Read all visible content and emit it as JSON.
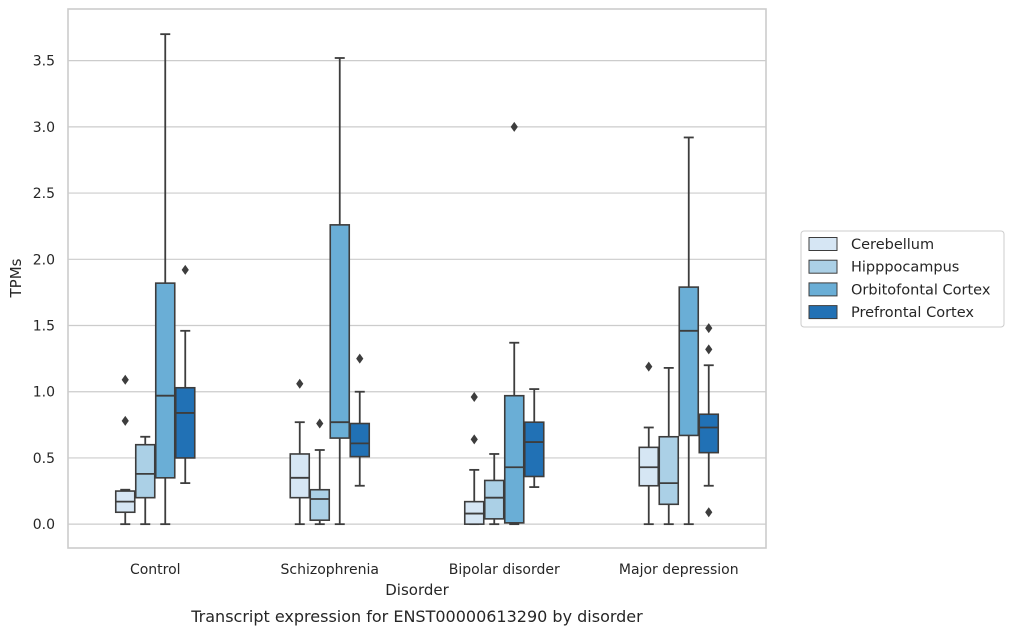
{
  "chart_data": {
    "type": "boxplot",
    "xlabel": "Disorder",
    "ylabel": "TPMs",
    "caption": "Transcript expression for ENST00000613290 by disorder",
    "ylim": [
      -0.18,
      3.89
    ],
    "yticks": [
      "0.0",
      "0.5",
      "1.0",
      "1.5",
      "2.0",
      "2.5",
      "3.0",
      "3.5"
    ],
    "grid": "horizontal",
    "legend_position": "right",
    "categories": [
      "Control",
      "Schizophrenia",
      "Bipolar disorder",
      "Major depression"
    ],
    "series": [
      {
        "name": "Cerebellum",
        "color": "#d6e6f4",
        "boxes": [
          {
            "whislo": 0.0,
            "q1": 0.09,
            "med": 0.17,
            "q3": 0.25,
            "whishi": 0.26,
            "fliers": [
              0.78,
              1.09
            ]
          },
          {
            "whislo": 0.0,
            "q1": 0.2,
            "med": 0.35,
            "q3": 0.53,
            "whishi": 0.77,
            "fliers": [
              1.06
            ]
          },
          {
            "whislo": 0.0,
            "q1": 0.0,
            "med": 0.08,
            "q3": 0.17,
            "whishi": 0.41,
            "fliers": [
              0.64,
              0.96
            ]
          },
          {
            "whislo": 0.0,
            "q1": 0.29,
            "med": 0.43,
            "q3": 0.58,
            "whishi": 0.73,
            "fliers": [
              1.19
            ]
          }
        ]
      },
      {
        "name": "Hipppocampus",
        "color": "#abd0e6",
        "boxes": [
          {
            "whislo": 0.0,
            "q1": 0.2,
            "med": 0.38,
            "q3": 0.6,
            "whishi": 0.66,
            "fliers": []
          },
          {
            "whislo": 0.0,
            "q1": 0.03,
            "med": 0.19,
            "q3": 0.26,
            "whishi": 0.56,
            "fliers": [
              0.76
            ]
          },
          {
            "whislo": 0.0,
            "q1": 0.04,
            "med": 0.2,
            "q3": 0.33,
            "whishi": 0.53,
            "fliers": []
          },
          {
            "whislo": 0.0,
            "q1": 0.15,
            "med": 0.31,
            "q3": 0.66,
            "whishi": 1.18,
            "fliers": []
          }
        ]
      },
      {
        "name": "Orbitofontal Cortex",
        "color": "#6aaed6",
        "boxes": [
          {
            "whislo": 0.0,
            "q1": 0.35,
            "med": 0.97,
            "q3": 1.82,
            "whishi": 3.7,
            "fliers": []
          },
          {
            "whislo": 0.0,
            "q1": 0.65,
            "med": 0.77,
            "q3": 2.26,
            "whishi": 3.52,
            "fliers": []
          },
          {
            "whislo": 0.0,
            "q1": 0.01,
            "med": 0.43,
            "q3": 0.97,
            "whishi": 1.37,
            "fliers": [
              3.0
            ]
          },
          {
            "whislo": 0.0,
            "q1": 0.67,
            "med": 1.46,
            "q3": 1.79,
            "whishi": 2.92,
            "fliers": []
          }
        ]
      },
      {
        "name": "Prefrontal Cortex",
        "color": "#2171b5",
        "boxes": [
          {
            "whislo": 0.31,
            "q1": 0.5,
            "med": 0.84,
            "q3": 1.03,
            "whishi": 1.46,
            "fliers": [
              1.92
            ]
          },
          {
            "whislo": 0.29,
            "q1": 0.51,
            "med": 0.61,
            "q3": 0.76,
            "whishi": 1.0,
            "fliers": [
              1.25
            ]
          },
          {
            "whislo": 0.28,
            "q1": 0.36,
            "med": 0.62,
            "q3": 0.77,
            "whishi": 1.02,
            "fliers": []
          },
          {
            "whislo": 0.29,
            "q1": 0.54,
            "med": 0.73,
            "q3": 0.83,
            "whishi": 1.2,
            "fliers": [
              0.09,
              1.32,
              1.48
            ]
          }
        ]
      }
    ]
  }
}
